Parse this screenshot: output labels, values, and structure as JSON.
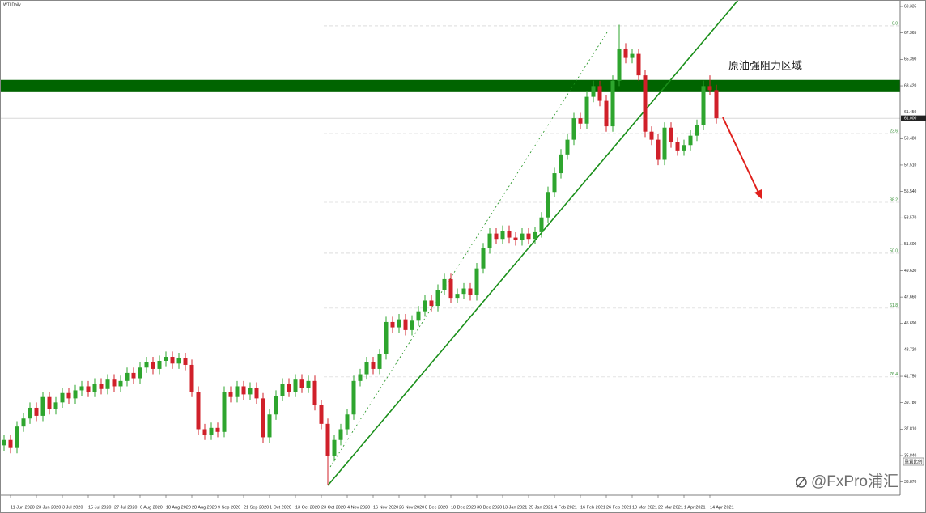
{
  "chart_data": {
    "type": "candlestick",
    "title": "WTI,Daily",
    "annotation": "原油强阻力区域",
    "watermark": "@FxPro浦汇",
    "button": "重置比例",
    "categories": [
      null,
      "11 Jun 2020",
      null,
      null,
      null,
      "23 Jun 2020",
      null,
      null,
      null,
      "3 Jul 2020",
      null,
      null,
      null,
      "15 Jul 2020",
      null,
      null,
      null,
      "27 Jul 2020",
      null,
      null,
      null,
      "6 Aug 2020",
      null,
      null,
      null,
      "18 Aug 2020",
      null,
      null,
      null,
      "28 Aug 2020",
      null,
      null,
      null,
      "9 Sep 2020",
      null,
      null,
      null,
      "21 Sep 2020",
      null,
      null,
      null,
      "1 Oct 2020",
      null,
      null,
      null,
      "13 Oct 2020",
      null,
      null,
      null,
      "23 Oct 2020",
      null,
      null,
      null,
      "4 Nov 2020",
      null,
      null,
      null,
      "16 Nov 2020",
      null,
      null,
      null,
      "26 Nov 2020",
      null,
      null,
      null,
      "8 Dec 2020",
      null,
      null,
      null,
      "18 Dec 2020",
      null,
      null,
      null,
      "30 Dec 2020",
      null,
      null,
      null,
      "13 Jan 2021",
      null,
      null,
      null,
      "25 Jan 2021",
      null,
      null,
      null,
      "4 Feb 2021",
      null,
      null,
      null,
      "16 Feb 2021",
      null,
      null,
      null,
      "26 Feb 2021",
      null,
      null,
      null,
      "10 Mar 2021",
      null,
      null,
      null,
      "22 Mar 2021",
      null,
      null,
      null,
      "1 Apr 2021",
      null,
      null,
      null,
      "14 Apr 2021",
      null
    ],
    "open": [
      36.6,
      37.0,
      36.4,
      38.0,
      38.6,
      39.4,
      38.8,
      40.2,
      39.3,
      39.8,
      40.5,
      40.1,
      40.7,
      41.0,
      40.6,
      41.2,
      40.8,
      41.5,
      41.0,
      41.4,
      42.0,
      41.6,
      42.4,
      42.8,
      42.3,
      42.9,
      43.2,
      42.7,
      43.1,
      42.6,
      40.6,
      37.8,
      37.4,
      37.9,
      37.6,
      40.6,
      40.2,
      41.0,
      40.4,
      40.9,
      40.1,
      37.2,
      38.9,
      40.3,
      41.2,
      40.6,
      41.5,
      40.9,
      41.4,
      39.6,
      38.2,
      35.8,
      37.0,
      37.8,
      38.9,
      41.4,
      41.9,
      42.8,
      42.3,
      43.4,
      45.8,
      45.4,
      46.0,
      45.2,
      45.9,
      46.6,
      47.4,
      47.0,
      48.2,
      49.0,
      47.6,
      47.9,
      48.3,
      47.8,
      49.8,
      51.3,
      52.4,
      52.0,
      52.6,
      52.1,
      51.9,
      52.4,
      52.0,
      52.5,
      53.6,
      55.5,
      56.9,
      58.3,
      59.4,
      61.0,
      60.6,
      62.6,
      63.4,
      62.3,
      60.4,
      63.8,
      66.2,
      65.5,
      65.8,
      64.2,
      60.0,
      59.4,
      57.9,
      60.3,
      59.2,
      58.6,
      59.0,
      59.7,
      60.5,
      63.4,
      63.1
    ],
    "high": [
      37.4,
      37.4,
      38.4,
      39.0,
      39.8,
      39.8,
      40.6,
      40.6,
      40.2,
      40.9,
      40.9,
      41.1,
      41.4,
      41.4,
      41.6,
      41.6,
      41.9,
      41.9,
      41.8,
      42.4,
      42.4,
      42.8,
      43.2,
      43.2,
      43.3,
      43.6,
      43.6,
      43.5,
      43.5,
      43.0,
      41.0,
      38.2,
      38.3,
      38.3,
      41.0,
      41.0,
      41.4,
      41.4,
      41.3,
      41.3,
      40.5,
      39.3,
      40.7,
      41.6,
      41.6,
      41.9,
      41.9,
      41.8,
      41.8,
      40.0,
      38.6,
      37.4,
      38.2,
      39.3,
      41.8,
      42.3,
      43.2,
      43.2,
      43.8,
      46.2,
      46.2,
      46.4,
      46.4,
      46.3,
      47.0,
      47.8,
      47.8,
      48.6,
      49.4,
      49.4,
      48.3,
      48.7,
      48.7,
      50.2,
      51.7,
      52.8,
      52.8,
      53.0,
      53.0,
      52.5,
      52.8,
      52.8,
      52.9,
      54.0,
      55.9,
      57.3,
      58.7,
      59.8,
      61.4,
      61.4,
      63.0,
      63.8,
      63.8,
      62.7,
      64.2,
      67.98,
      66.6,
      66.2,
      66.2,
      64.6,
      60.4,
      59.8,
      60.7,
      60.7,
      59.6,
      59.4,
      60.1,
      60.9,
      63.8,
      64.2,
      63.5
    ],
    "low": [
      36.2,
      36.0,
      36.0,
      37.6,
      38.2,
      38.4,
      38.4,
      38.9,
      38.9,
      39.4,
      39.7,
      39.7,
      40.3,
      40.2,
      40.2,
      40.4,
      40.4,
      40.6,
      40.6,
      41.0,
      41.2,
      41.2,
      42.0,
      41.9,
      41.9,
      42.5,
      42.3,
      42.3,
      42.2,
      40.2,
      37.4,
      37.0,
      37.0,
      37.2,
      37.2,
      39.8,
      39.8,
      40.0,
      40.0,
      39.7,
      36.8,
      36.8,
      38.5,
      39.9,
      40.2,
      40.2,
      40.5,
      40.5,
      39.2,
      37.8,
      33.6,
      35.4,
      36.6,
      37.4,
      38.5,
      41.0,
      41.5,
      41.9,
      41.9,
      43.0,
      45.0,
      45.0,
      44.8,
      44.8,
      45.5,
      46.2,
      46.6,
      46.6,
      47.8,
      47.2,
      47.2,
      47.5,
      47.4,
      47.4,
      49.4,
      50.9,
      51.6,
      51.6,
      51.7,
      51.5,
      51.5,
      51.6,
      51.6,
      52.1,
      53.2,
      55.1,
      56.5,
      57.9,
      59.0,
      60.2,
      60.2,
      62.2,
      61.9,
      60.0,
      60.0,
      63.4,
      65.1,
      65.1,
      63.8,
      59.6,
      59.0,
      57.5,
      57.5,
      58.8,
      58.2,
      58.2,
      58.6,
      59.3,
      60.1,
      62.7,
      60.6
    ],
    "close": [
      37.0,
      36.4,
      38.0,
      38.6,
      39.4,
      38.8,
      40.2,
      39.3,
      39.8,
      40.5,
      40.1,
      40.7,
      41.0,
      40.6,
      41.2,
      40.8,
      41.5,
      41.0,
      41.4,
      42.0,
      41.6,
      42.4,
      42.8,
      42.3,
      42.9,
      43.2,
      42.7,
      43.1,
      42.6,
      40.6,
      37.8,
      37.4,
      37.9,
      37.6,
      40.6,
      40.2,
      41.0,
      40.4,
      40.9,
      40.1,
      37.2,
      38.9,
      40.3,
      41.2,
      40.6,
      41.5,
      40.9,
      41.4,
      39.6,
      38.2,
      35.8,
      37.0,
      37.8,
      38.9,
      41.4,
      41.9,
      42.8,
      42.3,
      43.4,
      45.8,
      45.4,
      46.0,
      45.2,
      45.9,
      46.6,
      47.4,
      47.0,
      48.2,
      49.0,
      47.6,
      47.9,
      48.3,
      47.8,
      49.8,
      51.3,
      52.4,
      52.0,
      52.6,
      52.1,
      51.9,
      52.4,
      52.0,
      52.5,
      53.6,
      55.5,
      56.9,
      58.3,
      59.4,
      61.0,
      60.6,
      62.6,
      63.4,
      62.3,
      60.4,
      63.8,
      66.2,
      65.5,
      65.8,
      64.2,
      60.0,
      59.4,
      57.9,
      60.3,
      59.2,
      58.6,
      59.0,
      59.7,
      60.5,
      63.4,
      63.1,
      61.0
    ],
    "up_color": "#2ea52e",
    "down_color": "#d0202a",
    "ylim": [
      33.0,
      69.7
    ],
    "yticks": [
      {
        "value": 69.335,
        "label": "69.335"
      },
      {
        "value": 67.365,
        "label": "67.365"
      },
      {
        "value": 65.39,
        "label": "65.390"
      },
      {
        "value": 63.42,
        "label": "63.420"
      },
      {
        "value": 61.45,
        "label": "61.450"
      },
      {
        "value": 59.48,
        "label": "59.480"
      },
      {
        "value": 57.51,
        "label": "57.510"
      },
      {
        "value": 55.54,
        "label": "55.540"
      },
      {
        "value": 53.57,
        "label": "53.570"
      },
      {
        "value": 51.6,
        "label": "51.600"
      },
      {
        "value": 49.63,
        "label": "49.630"
      },
      {
        "value": 47.66,
        "label": "47.660"
      },
      {
        "value": 45.69,
        "label": "45.690"
      },
      {
        "value": 43.72,
        "label": "43.720"
      },
      {
        "value": 41.75,
        "label": "41.750"
      },
      {
        "value": 39.78,
        "label": "39.780"
      },
      {
        "value": 37.81,
        "label": "37.810"
      },
      {
        "value": 35.84,
        "label": "35.840"
      },
      {
        "value": 33.87,
        "label": "33.870"
      }
    ],
    "fib_levels": [
      {
        "value": 67.89,
        "label": "0.0"
      },
      {
        "value": 59.86,
        "label": "23.6"
      },
      {
        "value": 54.73,
        "label": "38.2"
      },
      {
        "value": 50.93,
        "label": "50.0"
      },
      {
        "value": 46.83,
        "label": "61.8"
      },
      {
        "value": 41.7,
        "label": "76.4"
      }
    ],
    "resistance_zone": [
      62.95,
      63.86
    ],
    "zone_color": "#006400",
    "current_price": {
      "value": 61.0,
      "label": "61.000"
    }
  }
}
